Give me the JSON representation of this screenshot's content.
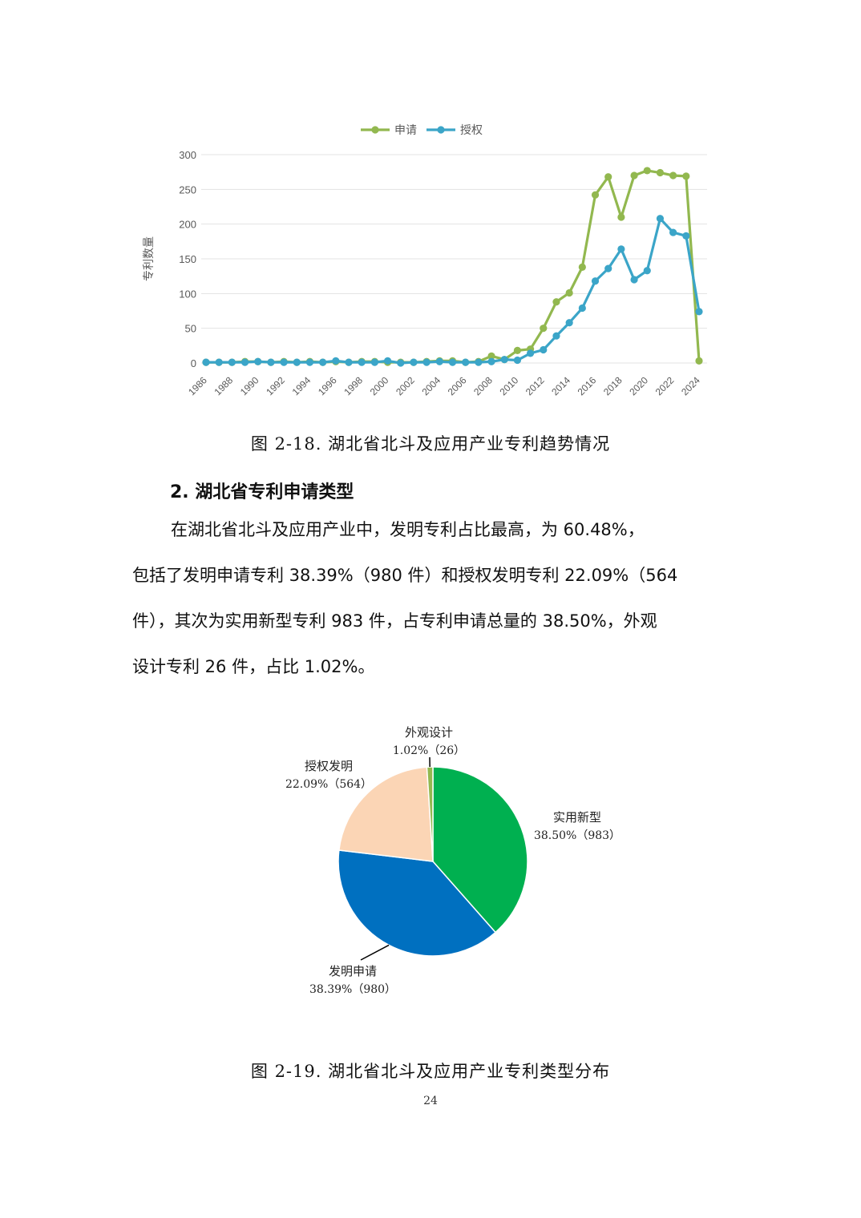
{
  "chart_data": [
    {
      "type": "line",
      "ylabel": "专利数量",
      "ylim": [
        0,
        300
      ],
      "yticks": [
        0,
        50,
        100,
        150,
        200,
        250,
        300
      ],
      "xtick_labels": [
        "1986",
        "1988",
        "1990",
        "1992",
        "1994",
        "1996",
        "1998",
        "2000",
        "2002",
        "2004",
        "2006",
        "2008",
        "2010",
        "2012",
        "2014",
        "2016",
        "2018",
        "2020",
        "2022",
        "2024"
      ],
      "x": [
        1986,
        1987,
        1988,
        1989,
        1990,
        1991,
        1992,
        1993,
        1994,
        1995,
        1996,
        1997,
        1998,
        1999,
        2000,
        2001,
        2002,
        2003,
        2004,
        2005,
        2006,
        2007,
        2008,
        2009,
        2010,
        2011,
        2012,
        2013,
        2014,
        2015,
        2016,
        2017,
        2018,
        2019,
        2020,
        2021,
        2022,
        2023,
        2024
      ],
      "series": [
        {
          "name": "申请",
          "color": "#92b84f",
          "values": [
            1,
            1,
            1,
            2,
            2,
            1,
            2,
            1,
            2,
            1,
            2,
            1,
            2,
            2,
            1,
            1,
            1,
            2,
            3,
            3,
            1,
            2,
            10,
            5,
            18,
            20,
            50,
            88,
            101,
            138,
            242,
            268,
            210,
            270,
            277,
            274,
            270,
            269,
            3
          ]
        },
        {
          "name": "授权",
          "color": "#3ba5c8",
          "values": [
            1,
            1,
            1,
            1,
            2,
            1,
            1,
            1,
            1,
            1,
            3,
            1,
            1,
            1,
            3,
            0,
            1,
            1,
            2,
            1,
            1,
            1,
            2,
            5,
            4,
            14,
            19,
            39,
            58,
            79,
            118,
            136,
            164,
            120,
            133,
            208,
            188,
            183,
            74
          ]
        }
      ],
      "legend": "top",
      "grid": true
    },
    {
      "type": "pie",
      "slices": [
        {
          "label": "实用新型",
          "percent": "38.50%",
          "value": 983,
          "color": "#00b050"
        },
        {
          "label": "发明申请",
          "percent": "38.39%",
          "value": 980,
          "color": "#0070c0"
        },
        {
          "label": "授权发明",
          "percent": "22.09%",
          "value": 564,
          "color": "#fbd5b5"
        },
        {
          "label": "外观设计",
          "percent": "1.02%",
          "value": 26,
          "color": "#92b84f"
        }
      ]
    }
  ],
  "captions": {
    "fig18": "图 2-18. 湖北省北斗及应用产业专利趋势情况",
    "fig19": "图 2-19. 湖北省北斗及应用产业专利类型分布"
  },
  "section_heading": "2. 湖北省专利申请类型",
  "paragraph_lines": [
    "在湖北省北斗及应用产业中，发明专利占比最高，为 60.48%，",
    "包括了发明申请专利 38.39%（980 件）和授权发明专利 22.09%（564",
    "件），其次为实用新型专利 983 件，占专利申请总量的 38.50%，外观",
    "设计专利 26 件，占比 1.02%。"
  ],
  "page_number": "24"
}
